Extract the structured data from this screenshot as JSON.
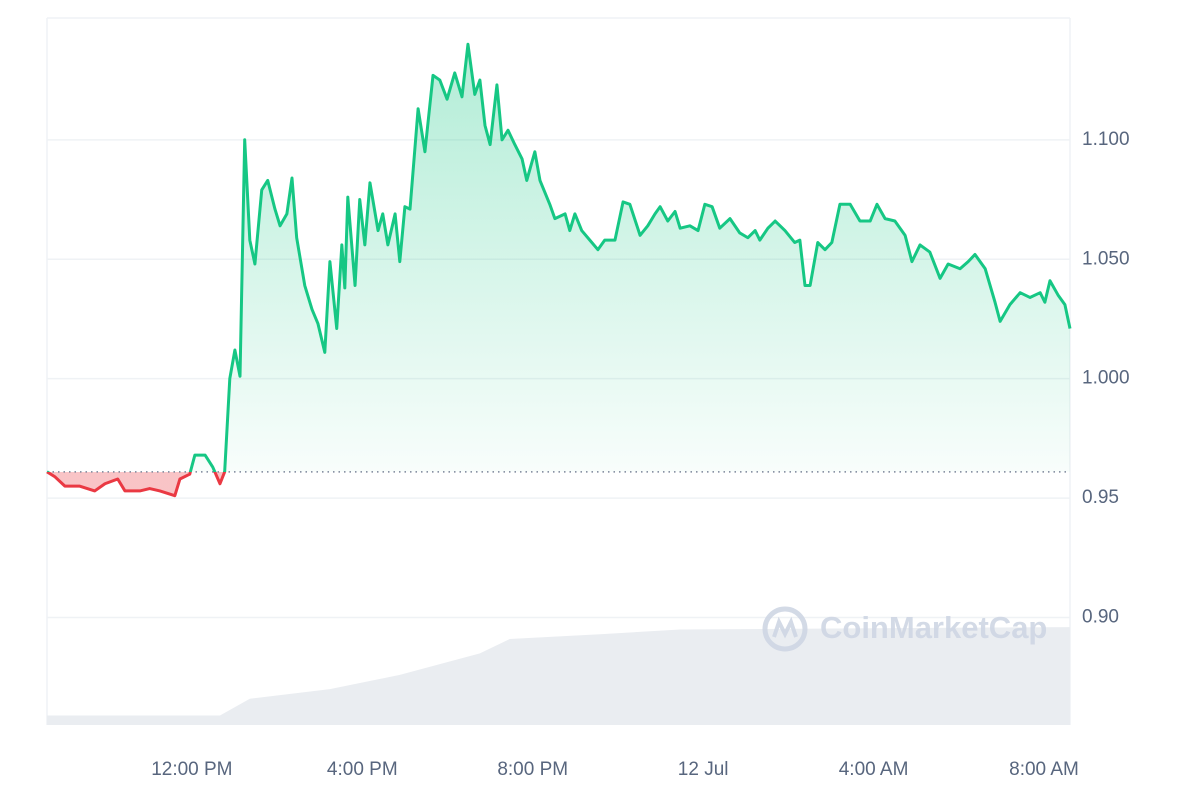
{
  "chart_data": {
    "type": "line",
    "x": [
      8.6,
      8.78,
      9.02,
      9.37,
      9.72,
      9.96,
      10.26,
      10.43,
      10.78,
      11.01,
      11.25,
      11.6,
      11.72,
      11.95,
      12.07,
      12.31,
      12.49,
      12.66,
      12.77,
      12.89,
      13.01,
      13.13,
      13.24,
      13.36,
      13.48,
      13.64,
      13.78,
      13.95,
      14.07,
      14.23,
      14.35,
      14.46,
      14.65,
      14.82,
      14.96,
      15.12,
      15.24,
      15.4,
      15.52,
      15.59,
      15.66,
      15.83,
      15.94,
      16.06,
      16.18,
      16.37,
      16.48,
      16.6,
      16.77,
      16.88,
      17.0,
      17.12,
      17.31,
      17.47,
      17.66,
      17.82,
      17.99,
      18.17,
      18.34,
      18.48,
      18.64,
      18.76,
      18.88,
      19.0,
      19.16,
      19.28,
      19.42,
      19.58,
      19.75,
      19.86,
      20.05,
      20.17,
      20.4,
      20.52,
      20.76,
      20.87,
      20.99,
      21.15,
      21.34,
      21.53,
      21.69,
      21.93,
      22.12,
      22.28,
      22.52,
      22.7,
      22.87,
      22.99,
      23.17,
      23.34,
      23.46,
      23.69,
      23.88,
      24.04,
      24.21,
      24.39,
      24.63,
      24.86,
      25.05,
      25.22,
      25.33,
      25.52,
      25.69,
      25.92,
      26.15,
      26.27,
      26.39,
      26.51,
      26.69,
      26.86,
      27.02,
      27.21,
      27.45,
      27.68,
      27.92,
      28.08,
      28.27,
      28.5,
      28.74,
      28.9,
      29.09,
      29.32,
      29.56,
      29.75,
      30.03,
      30.22,
      30.38,
      30.62,
      30.85,
      30.97,
      31.2,
      31.44,
      31.67,
      31.91,
      32.02,
      32.14,
      32.33,
      32.49,
      32.61
    ],
    "series": [
      {
        "color": "#16c784",
        "below_color": "#ea3943",
        "values": [
          0.961,
          0.959,
          0.955,
          0.955,
          0.953,
          0.956,
          0.958,
          0.953,
          0.953,
          0.954,
          0.953,
          0.951,
          0.958,
          0.96,
          0.968,
          0.968,
          0.963,
          0.956,
          0.961,
          1.0,
          1.012,
          1.001,
          1.1,
          1.058,
          1.048,
          1.079,
          1.083,
          1.071,
          1.064,
          1.069,
          1.084,
          1.059,
          1.039,
          1.029,
          1.023,
          1.011,
          1.049,
          1.021,
          1.056,
          1.038,
          1.076,
          1.039,
          1.075,
          1.056,
          1.082,
          1.062,
          1.069,
          1.056,
          1.069,
          1.049,
          1.072,
          1.071,
          1.113,
          1.095,
          1.127,
          1.125,
          1.117,
          1.128,
          1.118,
          1.14,
          1.119,
          1.125,
          1.106,
          1.098,
          1.123,
          1.1,
          1.104,
          1.098,
          1.092,
          1.083,
          1.095,
          1.083,
          1.073,
          1.067,
          1.069,
          1.062,
          1.069,
          1.062,
          1.058,
          1.054,
          1.058,
          1.058,
          1.074,
          1.073,
          1.06,
          1.064,
          1.069,
          1.072,
          1.066,
          1.07,
          1.063,
          1.064,
          1.062,
          1.073,
          1.072,
          1.063,
          1.067,
          1.061,
          1.059,
          1.062,
          1.058,
          1.063,
          1.066,
          1.062,
          1.057,
          1.058,
          1.039,
          1.039,
          1.057,
          1.054,
          1.057,
          1.073,
          1.073,
          1.066,
          1.066,
          1.073,
          1.067,
          1.066,
          1.06,
          1.049,
          1.056,
          1.053,
          1.042,
          1.048,
          1.046,
          1.049,
          1.052,
          1.046,
          1.032,
          1.024,
          1.031,
          1.036,
          1.034,
          1.036,
          1.032,
          1.041,
          1.035,
          1.031,
          1.021
        ]
      }
    ],
    "reference": 0.961,
    "volume": {
      "color": "#eaedf1",
      "x": [
        8.6,
        12.66,
        13.36,
        15.24,
        16.88,
        18.76,
        19.46,
        21.58,
        23.46,
        32.61
      ],
      "values": [
        0.859,
        0.859,
        0.866,
        0.87,
        0.876,
        0.885,
        0.891,
        0.893,
        0.895,
        0.896
      ]
    },
    "xlim": [
      8.6,
      32.61
    ],
    "xticks": [
      {
        "value": 12,
        "label": "12:00 PM"
      },
      {
        "value": 16,
        "label": "4:00 PM"
      },
      {
        "value": 20,
        "label": "8:00 PM"
      },
      {
        "value": 24,
        "label": "12 Jul"
      },
      {
        "value": 28,
        "label": "4:00 AM"
      },
      {
        "value": 32,
        "label": "8:00 AM"
      }
    ],
    "ylim": [
      0.855,
      1.151
    ],
    "yticks": [
      {
        "value": 1.1,
        "label": "1.100"
      },
      {
        "value": 1.05,
        "label": "1.050"
      },
      {
        "value": 1.0,
        "label": "1.000"
      },
      0.95,
      {
        "value": 0.9,
        "label": "0.90"
      }
    ],
    "grid": true,
    "watermark": "CoinMarketCap"
  }
}
